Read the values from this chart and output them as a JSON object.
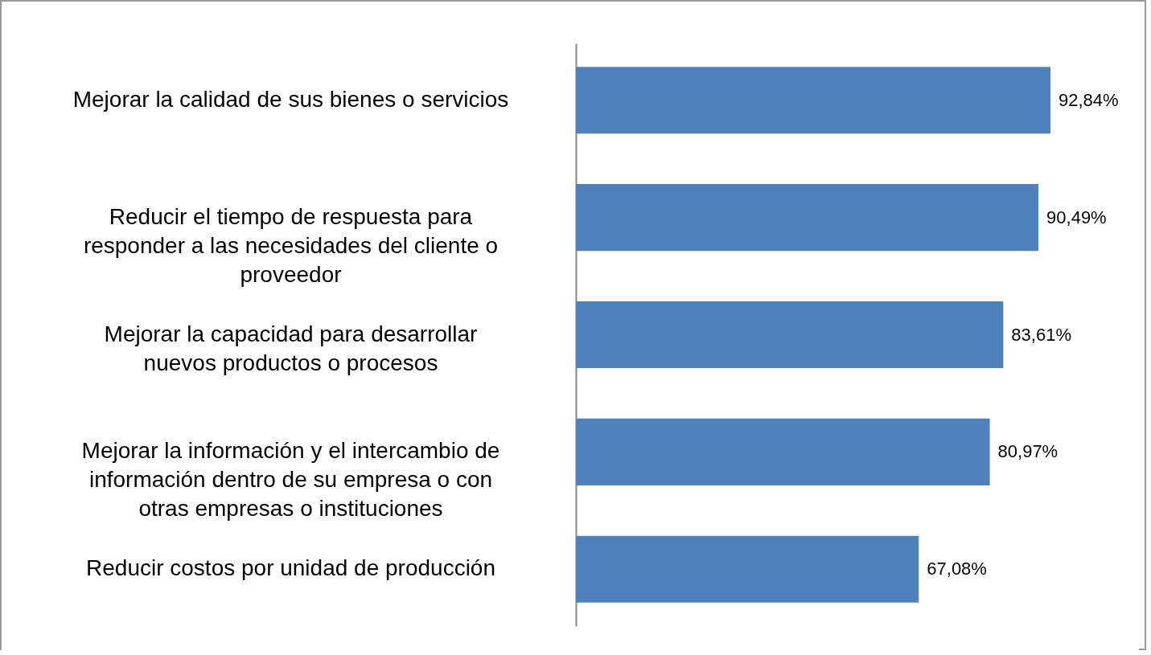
{
  "chart_data": {
    "type": "bar",
    "orientation": "horizontal",
    "categories": [
      "Mejorar la calidad de sus bienes o servicios",
      "Reducir el tiempo de respuesta para responder a las necesidades del cliente o proveedor",
      "Mejorar la capacidad para desarrollar nuevos productos o procesos",
      "Mejorar la información y el intercambio de información dentro de su empresa o con otras empresas o instituciones",
      "Reducir costos por unidad de producción"
    ],
    "values": [
      92.84,
      90.49,
      83.61,
      80.97,
      67.08
    ],
    "value_labels": [
      "92,84%",
      "90,49%",
      "83,61%",
      "80,97%",
      "67,08%"
    ],
    "color": "#4f81bd",
    "grid": false
  }
}
